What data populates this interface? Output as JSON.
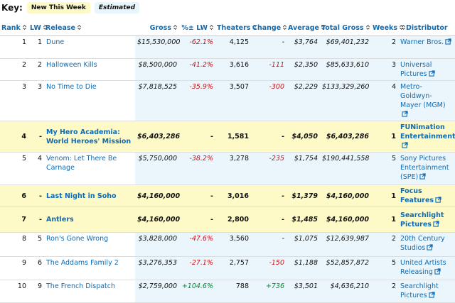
{
  "key": {
    "label": "Key:",
    "items": [
      "New This Week",
      "Estimated"
    ]
  },
  "table": {
    "headers": [
      "Rank",
      "LW",
      "Release",
      "Gross",
      "%± LW",
      "Theaters",
      "Change",
      "Average",
      "Total Gross",
      "Weeks",
      "Distributor"
    ],
    "rows": [
      {
        "new": false,
        "cells": [
          "1",
          "1",
          "Dune",
          "$15,530,000",
          "-62.1%",
          "4,125",
          "-",
          "$3,764",
          "$69,401,232",
          "2",
          "Warner Bros."
        ]
      },
      {
        "new": false,
        "cells": [
          "2",
          "2",
          "Halloween Kills",
          "$8,500,000",
          "-41.2%",
          "3,616",
          "-111",
          "$2,350",
          "$85,633,610",
          "3",
          "Universal Pictures"
        ]
      },
      {
        "new": false,
        "cells": [
          "3",
          "3",
          "No Time to Die",
          "$7,818,525",
          "-35.9%",
          "3,507",
          "-300",
          "$2,229",
          "$133,329,260",
          "4",
          "Metro-Goldwyn-Mayer (MGM)"
        ]
      },
      {
        "new": true,
        "cells": [
          "4",
          "-",
          "My Hero Academia: World Heroes' Mission",
          "$6,403,286",
          "-",
          "1,581",
          "-",
          "$4,050",
          "$6,403,286",
          "1",
          "FUNimation Entertainment"
        ]
      },
      {
        "new": false,
        "cells": [
          "5",
          "4",
          "Venom: Let There Be Carnage",
          "$5,750,000",
          "-38.2%",
          "3,278",
          "-235",
          "$1,754",
          "$190,441,558",
          "5",
          "Sony Pictures Entertainment (SPE)"
        ]
      },
      {
        "new": true,
        "cells": [
          "6",
          "-",
          "Last Night in Soho",
          "$4,160,000",
          "-",
          "3,016",
          "-",
          "$1,379",
          "$4,160,000",
          "1",
          "Focus Features"
        ]
      },
      {
        "new": true,
        "cells": [
          "7",
          "-",
          "Antlers",
          "$4,160,000",
          "-",
          "2,800",
          "-",
          "$1,485",
          "$4,160,000",
          "1",
          "Searchlight Pictures"
        ]
      },
      {
        "new": false,
        "cells": [
          "8",
          "5",
          "Ron's Gone Wrong",
          "$3,828,000",
          "-47.6%",
          "3,560",
          "-",
          "$1,075",
          "$12,639,987",
          "2",
          "20th Century Studios"
        ]
      },
      {
        "new": false,
        "cells": [
          "9",
          "6",
          "The Addams Family 2",
          "$3,276,353",
          "-27.1%",
          "2,757",
          "-150",
          "$1,188",
          "$52,857,872",
          "5",
          "United Artists Releasing"
        ]
      },
      {
        "new": false,
        "cells": [
          "10",
          "9",
          "The French Dispatch",
          "$2,759,000",
          "+104.6%",
          "788",
          "+736",
          "$3,501",
          "$4,636,210",
          "2",
          "Searchlight Pictures"
        ]
      }
    ]
  }
}
